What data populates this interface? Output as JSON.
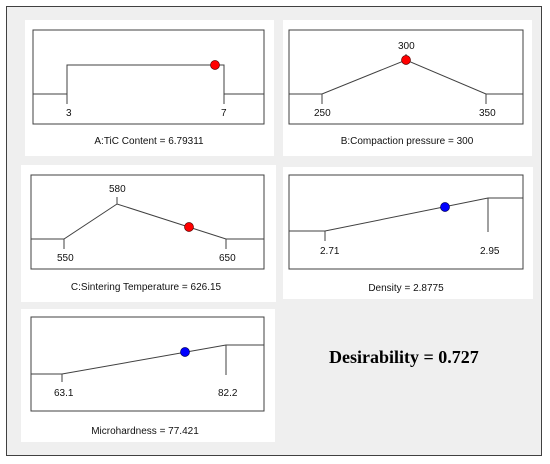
{
  "desirability_label": "Desirability = 0.727",
  "colors": {
    "factor_marker": "#ff0000",
    "response_marker": "#0000ff",
    "line": "#404040",
    "background": "#efefef"
  },
  "chart_data": [
    {
      "type": "line",
      "label": "A:TiC Content = 6.79311",
      "kind": "factor",
      "shape": "step",
      "ticks": [
        "3",
        "7"
      ],
      "marker": "red"
    },
    {
      "type": "line",
      "label": "B:Compaction pressure = 300",
      "kind": "factor",
      "shape": "peak",
      "ticks": [
        "250",
        "300",
        "350"
      ],
      "marker": "red"
    },
    {
      "type": "line",
      "label": "C:Sintering Temperature = 626.15",
      "kind": "factor",
      "shape": "peak",
      "ticks": [
        "550",
        "580",
        "650"
      ],
      "marker": "red"
    },
    {
      "type": "line",
      "label": "Density = 2.8775",
      "kind": "response",
      "shape": "ramp",
      "ticks": [
        "2.71",
        "2.95"
      ],
      "marker": "blue"
    },
    {
      "type": "line",
      "label": "Microhardness = 77.421",
      "kind": "response",
      "shape": "ramp",
      "ticks": [
        "63.1",
        "82.2"
      ],
      "marker": "blue"
    }
  ]
}
